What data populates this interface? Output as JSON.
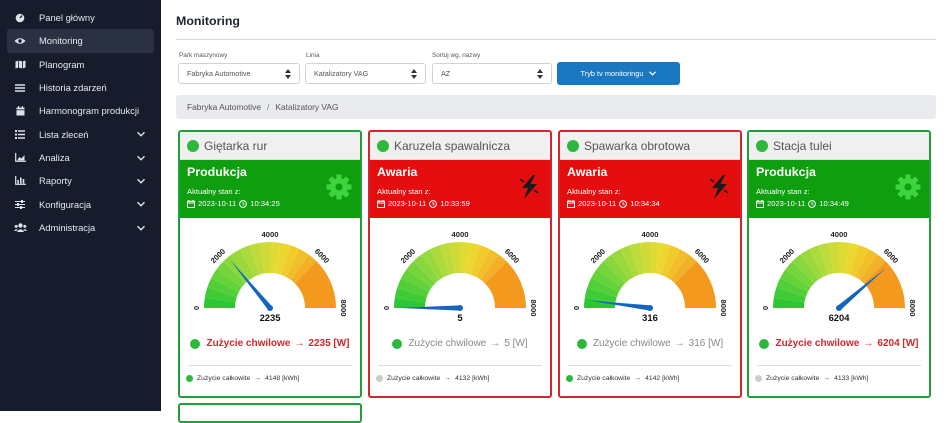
{
  "sidebar": {
    "items": [
      {
        "label": "Panel główny",
        "icon": "dashboard-icon",
        "chevron": false,
        "active": false
      },
      {
        "label": "Monitoring",
        "icon": "eye-icon",
        "chevron": false,
        "active": true
      },
      {
        "label": "Planogram",
        "icon": "map-icon",
        "chevron": false,
        "active": false
      },
      {
        "label": "Historia zdarzeń",
        "icon": "list-icon",
        "chevron": false,
        "active": false
      },
      {
        "label": "Harmonogram produkcji",
        "icon": "calendar-icon",
        "chevron": false,
        "active": false
      },
      {
        "label": "Lista zleceń",
        "icon": "tasks-icon",
        "chevron": true,
        "active": false
      },
      {
        "label": "Analiza",
        "icon": "area-chart-icon",
        "chevron": true,
        "active": false
      },
      {
        "label": "Raporty",
        "icon": "bar-chart-icon",
        "chevron": true,
        "active": false
      },
      {
        "label": "Konfiguracja",
        "icon": "sliders-icon",
        "chevron": true,
        "active": false
      },
      {
        "label": "Administracja",
        "icon": "users-icon",
        "chevron": true,
        "active": false
      }
    ]
  },
  "header": {
    "title": "Monitoring"
  },
  "filters": {
    "park": {
      "label": "Park maszynowy",
      "value": "Fabryka Automotive"
    },
    "line": {
      "label": "Linia",
      "value": "Katalizatory VAG"
    },
    "sort": {
      "label": "Sortuj wg. nazwy",
      "value": "AZ"
    },
    "tv_button": "Tryb tv monitoringu"
  },
  "breadcrumb": {
    "park": "Fabryka Automotive",
    "separator": "/",
    "line": "Katalizatory VAG"
  },
  "colors": {
    "ok": "#0f9e0f",
    "alarm": "#e50e0e",
    "accent": "#1a78c2"
  },
  "gauge_scale": {
    "min": 0,
    "max": 8000,
    "ticks": [
      "0",
      "2000",
      "4000",
      "6000",
      "8000"
    ]
  },
  "machines": [
    {
      "name": "Giętarka rur",
      "status": "Produkcja",
      "state_label": "Aktualny stan z:",
      "date": "2023-10-11",
      "time": "10:34:25",
      "value": 2235,
      "value_text": "2235",
      "current_label": "Zużycie chwilowe",
      "current_text": "2235 [W]",
      "current_highlight": true,
      "total_label": "Zużycie całkowite",
      "total_text": "4148 [kWh]",
      "total_active": true,
      "status_icon": "gear-icon",
      "alarm": false
    },
    {
      "name": "Karuzela spawalnicza",
      "status": "Awaria",
      "state_label": "Aktualny stan z:",
      "date": "2023-10-11",
      "time": "10:33:59",
      "value": 5,
      "value_text": "5",
      "current_label": "Zużycie chwilowe",
      "current_text": "5 [W]",
      "current_highlight": false,
      "total_label": "Zużycie całkowite",
      "total_text": "4132 [kWh]",
      "total_active": false,
      "status_icon": "lightning-icon",
      "alarm": true
    },
    {
      "name": "Spawarka obrotowa",
      "status": "Awaria",
      "state_label": "Aktualny stan z:",
      "date": "2023-10-11",
      "time": "10:34:34",
      "value": 316,
      "value_text": "316",
      "current_label": "Zużycie chwilowe",
      "current_text": "316 [W]",
      "current_highlight": false,
      "total_label": "Zużycie całkowite",
      "total_text": "4142 [kWh]",
      "total_active": true,
      "status_icon": "lightning-icon",
      "alarm": true
    },
    {
      "name": "Stacja tulei",
      "status": "Produkcja",
      "state_label": "Aktualny stan z:",
      "date": "2023-10-11",
      "time": "10:34:49",
      "value": 6204,
      "value_text": "6204",
      "current_label": "Zużycie chwilowe",
      "current_text": "6204 [W]",
      "current_highlight": true,
      "total_label": "Zużycie całkowite",
      "total_text": "4133 [kWh]",
      "total_active": false,
      "status_icon": "gear-icon",
      "alarm": false
    }
  ]
}
